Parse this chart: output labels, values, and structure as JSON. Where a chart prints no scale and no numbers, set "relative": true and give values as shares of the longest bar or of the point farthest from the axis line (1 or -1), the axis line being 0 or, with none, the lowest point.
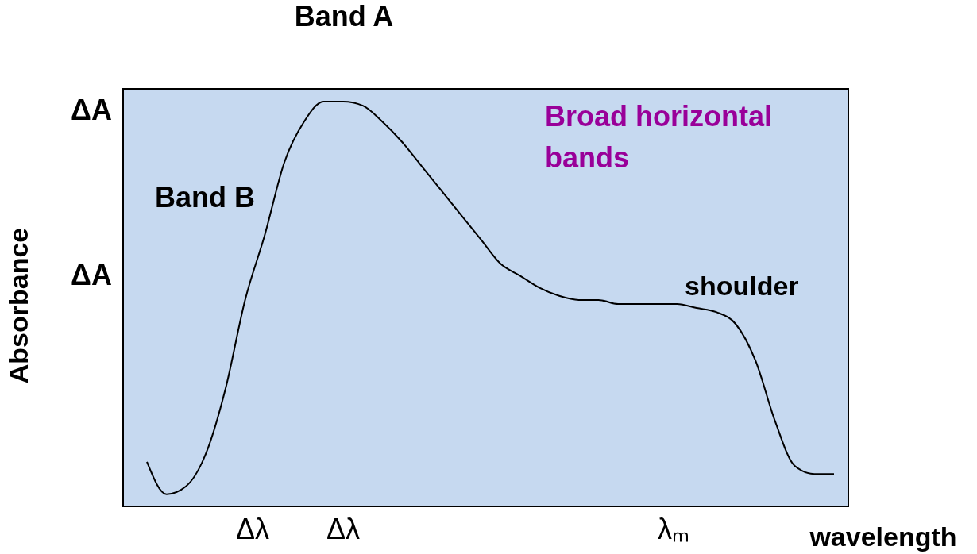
{
  "chart_data": {
    "type": "line",
    "relative": true,
    "xlabel": "wavelength",
    "ylabel": "Absorbance",
    "color": "#000000",
    "categories": [
      null,
      null,
      null,
      null,
      null,
      null,
      null,
      null,
      null,
      null,
      null,
      null,
      null,
      null,
      null,
      null,
      null,
      null,
      null,
      null,
      null,
      null,
      null,
      null,
      null,
      null,
      null,
      null,
      null,
      null,
      null,
      null,
      null,
      null,
      null,
      null
    ],
    "values": [
      0.11,
      0.03,
      0.05,
      0.13,
      0.29,
      0.51,
      0.67,
      0.85,
      0.95,
      1.0,
      1.0,
      0.99,
      0.95,
      0.9,
      0.84,
      0.78,
      0.72,
      0.66,
      0.6,
      0.57,
      0.54,
      0.52,
      0.51,
      0.51,
      0.5,
      0.5,
      0.5,
      0.5,
      0.49,
      0.48,
      0.45,
      0.36,
      0.21,
      0.1,
      0.08,
      0.08
    ],
    "annotations": [
      "Band A",
      "Band B",
      "Broad horizontal bands",
      "shoulder",
      "ΔA",
      "ΔA",
      "Δλ",
      "Δλ",
      "λₘ"
    ]
  }
}
